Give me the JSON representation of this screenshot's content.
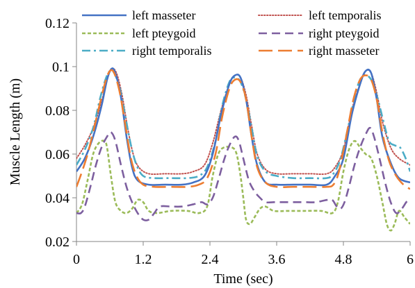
{
  "chart_data": {
    "type": "line",
    "title": "",
    "xlabel": "Time (sec)",
    "ylabel": "Muscle Length (m)",
    "xlim": [
      0,
      6
    ],
    "ylim": [
      0.02,
      0.12
    ],
    "xticks": [
      0,
      1.2,
      2.4,
      3.6,
      4.8,
      6
    ],
    "yticks": [
      0.02,
      0.04,
      0.06,
      0.08,
      0.1,
      0.12
    ],
    "xtick_labels": [
      "0",
      "1.2",
      "2.4",
      "3.6",
      "4.8",
      "6"
    ],
    "ytick_labels": [
      "0.02",
      "0.04",
      "0.06",
      "0.08",
      "0.1",
      "0.12"
    ],
    "grid": false,
    "legend": "top",
    "series": [
      {
        "name": "left masseter",
        "color": "#4472c4",
        "dash": "solid",
        "points": [
          [
            0,
            0.052
          ],
          [
            0.15,
            0.058
          ],
          [
            0.3,
            0.068
          ],
          [
            0.45,
            0.082
          ],
          [
            0.55,
            0.094
          ],
          [
            0.63,
            0.099
          ],
          [
            0.7,
            0.097
          ],
          [
            0.8,
            0.086
          ],
          [
            0.9,
            0.068
          ],
          [
            1.0,
            0.054
          ],
          [
            1.1,
            0.048
          ],
          [
            1.3,
            0.046
          ],
          [
            1.6,
            0.046
          ],
          [
            1.9,
            0.046
          ],
          [
            2.1,
            0.047
          ],
          [
            2.3,
            0.05
          ],
          [
            2.45,
            0.06
          ],
          [
            2.6,
            0.078
          ],
          [
            2.75,
            0.092
          ],
          [
            2.85,
            0.096
          ],
          [
            2.95,
            0.095
          ],
          [
            3.05,
            0.085
          ],
          [
            3.15,
            0.068
          ],
          [
            3.25,
            0.055
          ],
          [
            3.4,
            0.047
          ],
          [
            3.6,
            0.046
          ],
          [
            3.9,
            0.046
          ],
          [
            4.2,
            0.046
          ],
          [
            4.5,
            0.046
          ],
          [
            4.65,
            0.05
          ],
          [
            4.8,
            0.058
          ],
          [
            4.95,
            0.078
          ],
          [
            5.1,
            0.092
          ],
          [
            5.2,
            0.098
          ],
          [
            5.3,
            0.097
          ],
          [
            5.4,
            0.085
          ],
          [
            5.5,
            0.068
          ],
          [
            5.65,
            0.056
          ],
          [
            5.8,
            0.049
          ],
          [
            6.0,
            0.047
          ]
        ]
      },
      {
        "name": "left temporalis",
        "color": "#c0504d",
        "dash": "dotted",
        "points": [
          [
            0,
            0.058
          ],
          [
            0.15,
            0.064
          ],
          [
            0.3,
            0.072
          ],
          [
            0.45,
            0.084
          ],
          [
            0.55,
            0.094
          ],
          [
            0.63,
            0.099
          ],
          [
            0.72,
            0.097
          ],
          [
            0.82,
            0.087
          ],
          [
            0.92,
            0.072
          ],
          [
            1.02,
            0.06
          ],
          [
            1.12,
            0.054
          ],
          [
            1.3,
            0.051
          ],
          [
            1.6,
            0.051
          ],
          [
            1.9,
            0.051
          ],
          [
            2.1,
            0.052
          ],
          [
            2.3,
            0.055
          ],
          [
            2.45,
            0.065
          ],
          [
            2.6,
            0.08
          ],
          [
            2.75,
            0.092
          ],
          [
            2.85,
            0.096
          ],
          [
            2.95,
            0.095
          ],
          [
            3.05,
            0.087
          ],
          [
            3.15,
            0.073
          ],
          [
            3.25,
            0.06
          ],
          [
            3.4,
            0.053
          ],
          [
            3.6,
            0.051
          ],
          [
            3.9,
            0.051
          ],
          [
            4.2,
            0.051
          ],
          [
            4.5,
            0.051
          ],
          [
            4.65,
            0.054
          ],
          [
            4.8,
            0.062
          ],
          [
            4.95,
            0.08
          ],
          [
            5.1,
            0.092
          ],
          [
            5.2,
            0.098
          ],
          [
            5.3,
            0.097
          ],
          [
            5.4,
            0.088
          ],
          [
            5.5,
            0.075
          ],
          [
            5.65,
            0.063
          ],
          [
            5.8,
            0.058
          ],
          [
            6.0,
            0.055
          ]
        ]
      },
      {
        "name": "left pteygoid",
        "color": "#9bbb59",
        "dash": "short-dash",
        "points": [
          [
            0,
            0.033
          ],
          [
            0.1,
            0.037
          ],
          [
            0.2,
            0.048
          ],
          [
            0.3,
            0.06
          ],
          [
            0.4,
            0.065
          ],
          [
            0.5,
            0.066
          ],
          [
            0.55,
            0.063
          ],
          [
            0.62,
            0.05
          ],
          [
            0.7,
            0.038
          ],
          [
            0.8,
            0.034
          ],
          [
            0.9,
            0.033
          ],
          [
            1.0,
            0.035
          ],
          [
            1.1,
            0.039
          ],
          [
            1.2,
            0.038
          ],
          [
            1.3,
            0.034
          ],
          [
            1.45,
            0.033
          ],
          [
            1.7,
            0.034
          ],
          [
            2.0,
            0.034
          ],
          [
            2.2,
            0.033
          ],
          [
            2.35,
            0.036
          ],
          [
            2.45,
            0.05
          ],
          [
            2.55,
            0.06
          ],
          [
            2.65,
            0.063
          ],
          [
            2.8,
            0.063
          ],
          [
            2.88,
            0.06
          ],
          [
            2.95,
            0.05
          ],
          [
            3.0,
            0.04
          ],
          [
            3.05,
            0.03
          ],
          [
            3.12,
            0.028
          ],
          [
            3.2,
            0.031
          ],
          [
            3.3,
            0.035
          ],
          [
            3.4,
            0.036
          ],
          [
            3.55,
            0.034
          ],
          [
            3.8,
            0.034
          ],
          [
            4.1,
            0.034
          ],
          [
            4.4,
            0.034
          ],
          [
            4.6,
            0.033
          ],
          [
            4.7,
            0.038
          ],
          [
            4.8,
            0.052
          ],
          [
            4.9,
            0.062
          ],
          [
            5.0,
            0.066
          ],
          [
            5.1,
            0.063
          ],
          [
            5.2,
            0.06
          ],
          [
            5.3,
            0.058
          ],
          [
            5.4,
            0.05
          ],
          [
            5.5,
            0.038
          ],
          [
            5.58,
            0.028
          ],
          [
            5.65,
            0.025
          ],
          [
            5.72,
            0.028
          ],
          [
            5.8,
            0.034
          ],
          [
            5.9,
            0.031
          ],
          [
            6.0,
            0.028
          ]
        ]
      },
      {
        "name": "right pteygoid",
        "color": "#7d5f9f",
        "dash": "dash",
        "points": [
          [
            0,
            0.033
          ],
          [
            0.08,
            0.033
          ],
          [
            0.15,
            0.036
          ],
          [
            0.25,
            0.045
          ],
          [
            0.35,
            0.055
          ],
          [
            0.45,
            0.063
          ],
          [
            0.55,
            0.068
          ],
          [
            0.62,
            0.07
          ],
          [
            0.7,
            0.066
          ],
          [
            0.8,
            0.055
          ],
          [
            0.9,
            0.045
          ],
          [
            1.0,
            0.038
          ],
          [
            1.1,
            0.033
          ],
          [
            1.2,
            0.03
          ],
          [
            1.3,
            0.03
          ],
          [
            1.4,
            0.033
          ],
          [
            1.5,
            0.036
          ],
          [
            1.7,
            0.036
          ],
          [
            1.9,
            0.036
          ],
          [
            2.1,
            0.037
          ],
          [
            2.25,
            0.038
          ],
          [
            2.35,
            0.037
          ],
          [
            2.45,
            0.04
          ],
          [
            2.55,
            0.048
          ],
          [
            2.65,
            0.057
          ],
          [
            2.75,
            0.064
          ],
          [
            2.85,
            0.068
          ],
          [
            2.92,
            0.066
          ],
          [
            3.0,
            0.058
          ],
          [
            3.1,
            0.048
          ],
          [
            3.2,
            0.043
          ],
          [
            3.3,
            0.04
          ],
          [
            3.4,
            0.038
          ],
          [
            3.55,
            0.038
          ],
          [
            3.7,
            0.038
          ],
          [
            3.9,
            0.038
          ],
          [
            4.1,
            0.038
          ],
          [
            4.3,
            0.038
          ],
          [
            4.5,
            0.039
          ],
          [
            4.6,
            0.039
          ],
          [
            4.68,
            0.036
          ],
          [
            4.75,
            0.035
          ],
          [
            4.82,
            0.038
          ],
          [
            4.9,
            0.045
          ],
          [
            5.0,
            0.055
          ],
          [
            5.1,
            0.063
          ],
          [
            5.2,
            0.069
          ],
          [
            5.28,
            0.072
          ],
          [
            5.35,
            0.068
          ],
          [
            5.45,
            0.058
          ],
          [
            5.55,
            0.047
          ],
          [
            5.65,
            0.038
          ],
          [
            5.75,
            0.033
          ],
          [
            5.85,
            0.035
          ],
          [
            5.93,
            0.038
          ],
          [
            6.0,
            0.04
          ]
        ]
      },
      {
        "name": "right temporalis",
        "color": "#4bacc6",
        "dash": "dash-dot",
        "points": [
          [
            0,
            0.055
          ],
          [
            0.15,
            0.062
          ],
          [
            0.3,
            0.072
          ],
          [
            0.42,
            0.085
          ],
          [
            0.52,
            0.094
          ],
          [
            0.6,
            0.098
          ],
          [
            0.68,
            0.097
          ],
          [
            0.78,
            0.09
          ],
          [
            0.88,
            0.077
          ],
          [
            0.98,
            0.064
          ],
          [
            1.08,
            0.055
          ],
          [
            1.2,
            0.05
          ],
          [
            1.4,
            0.049
          ],
          [
            1.7,
            0.049
          ],
          [
            2.0,
            0.049
          ],
          [
            2.2,
            0.05
          ],
          [
            2.35,
            0.054
          ],
          [
            2.5,
            0.066
          ],
          [
            2.62,
            0.082
          ],
          [
            2.75,
            0.093
          ],
          [
            2.85,
            0.095
          ],
          [
            2.95,
            0.093
          ],
          [
            3.05,
            0.085
          ],
          [
            3.15,
            0.072
          ],
          [
            3.25,
            0.059
          ],
          [
            3.4,
            0.052
          ],
          [
            3.6,
            0.05
          ],
          [
            3.9,
            0.049
          ],
          [
            4.2,
            0.049
          ],
          [
            4.5,
            0.049
          ],
          [
            4.62,
            0.051
          ],
          [
            4.75,
            0.058
          ],
          [
            4.9,
            0.074
          ],
          [
            5.02,
            0.088
          ],
          [
            5.12,
            0.095
          ],
          [
            5.22,
            0.096
          ],
          [
            5.32,
            0.093
          ],
          [
            5.42,
            0.085
          ],
          [
            5.52,
            0.075
          ],
          [
            5.62,
            0.066
          ],
          [
            5.72,
            0.064
          ],
          [
            5.82,
            0.063
          ],
          [
            5.92,
            0.058
          ],
          [
            6.0,
            0.052
          ]
        ]
      },
      {
        "name": "right masseter",
        "color": "#ed7d31",
        "dash": "long-dash",
        "points": [
          [
            0,
            0.045
          ],
          [
            0.1,
            0.052
          ],
          [
            0.2,
            0.06
          ],
          [
            0.3,
            0.07
          ],
          [
            0.42,
            0.083
          ],
          [
            0.52,
            0.093
          ],
          [
            0.6,
            0.098
          ],
          [
            0.68,
            0.097
          ],
          [
            0.78,
            0.088
          ],
          [
            0.88,
            0.073
          ],
          [
            0.98,
            0.058
          ],
          [
            1.08,
            0.05
          ],
          [
            1.2,
            0.046
          ],
          [
            1.4,
            0.045
          ],
          [
            1.7,
            0.045
          ],
          [
            2.0,
            0.045
          ],
          [
            2.2,
            0.046
          ],
          [
            2.35,
            0.049
          ],
          [
            2.5,
            0.06
          ],
          [
            2.62,
            0.077
          ],
          [
            2.75,
            0.09
          ],
          [
            2.85,
            0.094
          ],
          [
            2.95,
            0.093
          ],
          [
            3.05,
            0.085
          ],
          [
            3.15,
            0.068
          ],
          [
            3.25,
            0.054
          ],
          [
            3.4,
            0.047
          ],
          [
            3.6,
            0.045
          ],
          [
            3.9,
            0.045
          ],
          [
            4.2,
            0.045
          ],
          [
            4.5,
            0.045
          ],
          [
            4.62,
            0.046
          ],
          [
            4.72,
            0.052
          ],
          [
            4.85,
            0.068
          ],
          [
            4.98,
            0.085
          ],
          [
            5.1,
            0.094
          ],
          [
            5.2,
            0.096
          ],
          [
            5.3,
            0.094
          ],
          [
            5.4,
            0.085
          ],
          [
            5.5,
            0.07
          ],
          [
            5.62,
            0.057
          ],
          [
            5.75,
            0.05
          ],
          [
            5.88,
            0.046
          ],
          [
            6.0,
            0.044
          ]
        ]
      }
    ]
  }
}
